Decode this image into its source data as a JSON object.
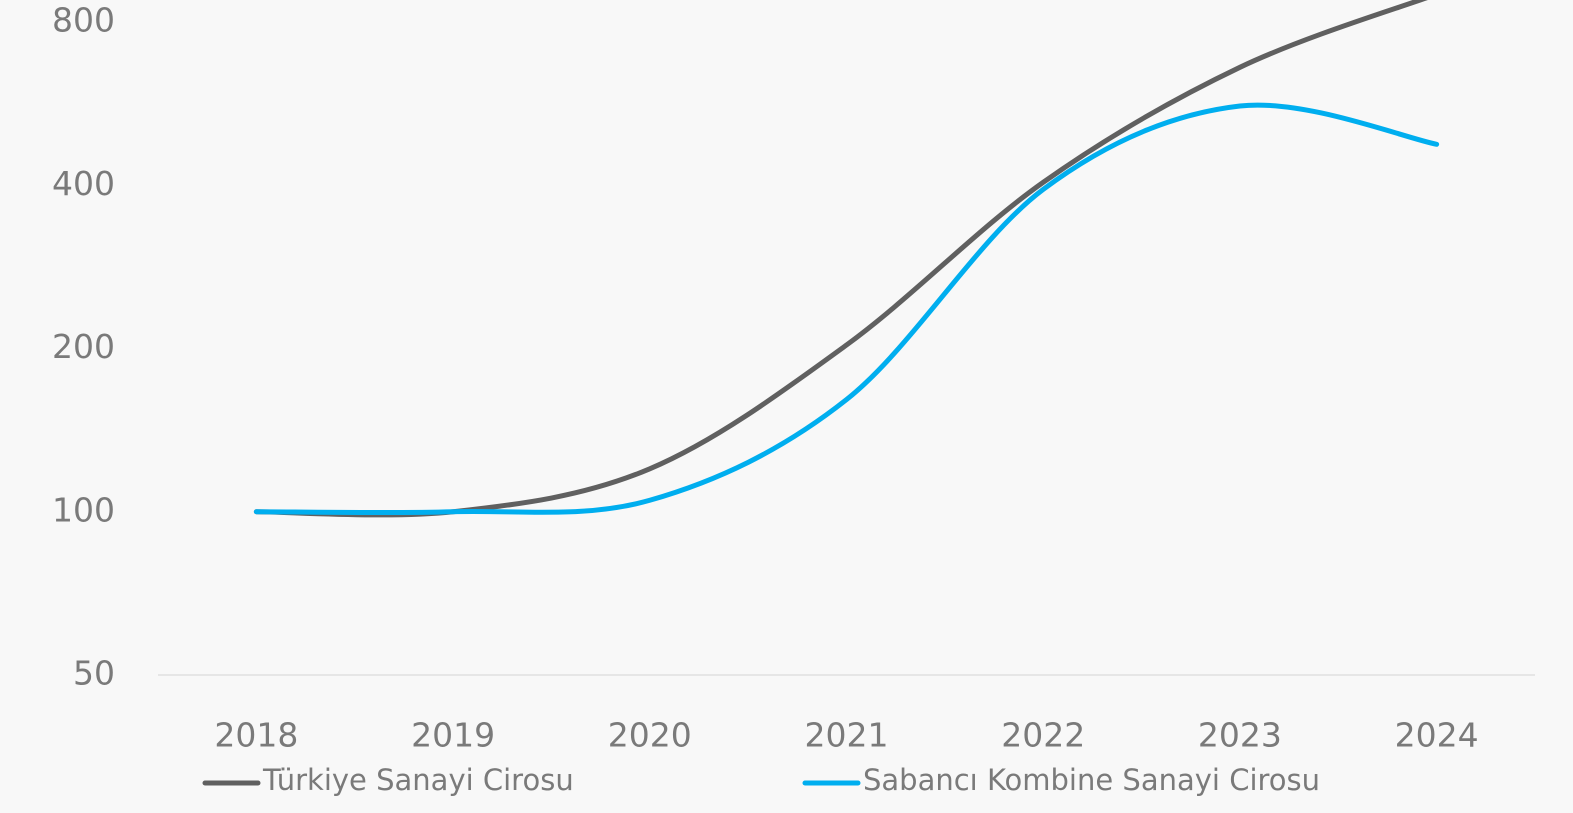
{
  "chart_data": {
    "type": "line",
    "categories": [
      "2018",
      "2019",
      "2020",
      "2021",
      "2022",
      "2023",
      "2024"
    ],
    "series": [
      {
        "name": "Türkiye Sanayi Cirosu",
        "color": "#606060",
        "values": [
          100,
          100,
          120,
          203,
          405,
          660,
          900
        ]
      },
      {
        "name": "Sabancı Kombine Sanayi Cirosu",
        "color": "#00aeef",
        "values": [
          100,
          100,
          105,
          161,
          393,
          560,
          476
        ]
      }
    ],
    "ylim": [
      50,
      800
    ],
    "yticks": [
      50,
      100,
      200,
      400,
      800
    ],
    "log_scale": true,
    "smooth": true
  }
}
